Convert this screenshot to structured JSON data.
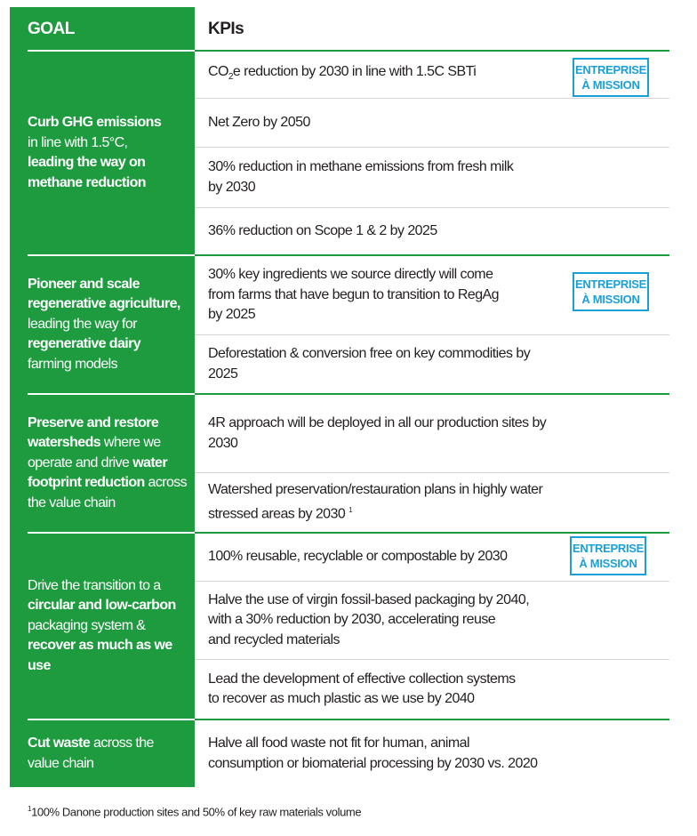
{
  "header": {
    "goal": "GOAL",
    "kpis": "KPIs"
  },
  "badge": {
    "line1": "ENTREPRISE",
    "line2": "À MISSION",
    "color": "#1aa0d8"
  },
  "colors": {
    "green": "#1e9b3f"
  },
  "goals": [
    {
      "b1": "Curb GHG emissions",
      "t1": "in line with 1.5°C,",
      "b2": "leading the way on",
      "b3": "methane reduction"
    },
    {
      "b1": "Pioneer and scale regenerative agriculture,",
      "t1": " leading the way for ",
      "b2": "regenerative dairy",
      "t2": " farming models"
    },
    {
      "b1": "Preserve and restore watersheds",
      "t1": " where we operate and drive ",
      "b2": "water footprint reduction",
      "t2": " across the value chain"
    },
    {
      "t1": "Drive the transition to a ",
      "b1": "circular and low-carbon",
      "t2": " packaging system & ",
      "b2": "recover as much as we use"
    },
    {
      "b1": "Cut waste",
      "t1": " across the value chain"
    }
  ],
  "kpis": {
    "co2_pre": "CO",
    "co2_sub": "2",
    "co2_post": "e reduction by 2030 in line with 1.5C SBTi",
    "netzero": "Net Zero by 2050",
    "methane": [
      "30% reduction in methane emissions from fresh milk",
      "by 2030"
    ],
    "scope": "36% reduction on Scope 1 & 2 by 2025",
    "regag": [
      "30% key ingredients we source directly will come",
      "from farms that have begun to transition to RegAg",
      "by 2025"
    ],
    "defor": [
      "Deforestation & conversion free on key commodities by",
      "2025"
    ],
    "fourr": [
      "4R approach will be deployed in all our production sites by",
      "2030"
    ],
    "watershed": [
      "Watershed preservation/restauration plans in highly water",
      "stressed areas by 2030"
    ],
    "watershed_note": "1",
    "reusable": "100% reusable, recyclable or compostable by 2030",
    "fossil": [
      "Halve the use of virgin fossil-based packaging by 2040,",
      "with a 30% reduction by 2030, accelerating reuse",
      "and recycled materials"
    ],
    "collection": [
      "Lead the development of effective collection systems",
      "to recover as much plastic as we use by 2040"
    ],
    "food": [
      "Halve all food waste not fit for human, animal",
      "consumption or biomaterial processing by 2030 vs. 2020"
    ]
  },
  "footnote": {
    "mark": "1",
    "text": "100% Danone production sites and 50% of key raw materials volume"
  }
}
